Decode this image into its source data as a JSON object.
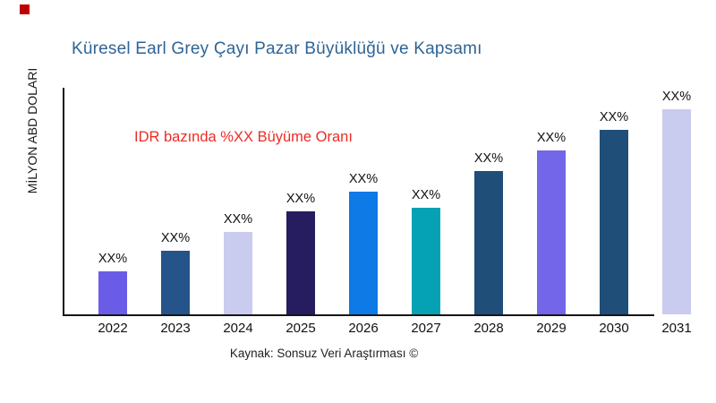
{
  "brand_mark": {
    "color": "#c00000"
  },
  "title": {
    "text": "Küresel Earl Grey Çayı Pazar Büyüklüğü ve Kapsamı",
    "color": "#2E6496"
  },
  "annotation": {
    "text": "IDR bazında %XX Büyüme Oranı",
    "color": "#ED2B24"
  },
  "y_axis": {
    "label": "MİLYON ABD DOLARI"
  },
  "source": {
    "text": "Kaynak: Sonsuz Veri Araştırması ©"
  },
  "chart_data": {
    "type": "bar",
    "title": "Küresel Earl Grey Çayı Pazar Büyüklüğü ve Kapsamı",
    "ylabel": "MİLYON ABD DOLARI",
    "xlabel": "",
    "categories": [
      "2022",
      "2023",
      "2024",
      "2025",
      "2026",
      "2027",
      "2028",
      "2029",
      "2030",
      "2031"
    ],
    "values_normalized": [
      21,
      31,
      40,
      50,
      60,
      52,
      70,
      80,
      90,
      100
    ],
    "values_note": "actual values masked on chart; bars labeled XX%, heights estimated relative to tallest bar = 100",
    "bar_value_labels": [
      "XX%",
      "XX%",
      "XX%",
      "XX%",
      "XX%",
      "XX%",
      "XX%",
      "XX%",
      "XX%",
      "XX%"
    ],
    "bar_colors": [
      "#6A5CE7",
      "#24548A",
      "#C9CBEF",
      "#251D60",
      "#0E7AE6",
      "#04A2B4",
      "#1F4E79",
      "#7366E9",
      "#1F4E79",
      "#C9CBEF"
    ],
    "annotation": "IDR bazında %XX Büyüme Oranı",
    "legend": "none",
    "grid": false,
    "y_axis_ticks": "none"
  }
}
